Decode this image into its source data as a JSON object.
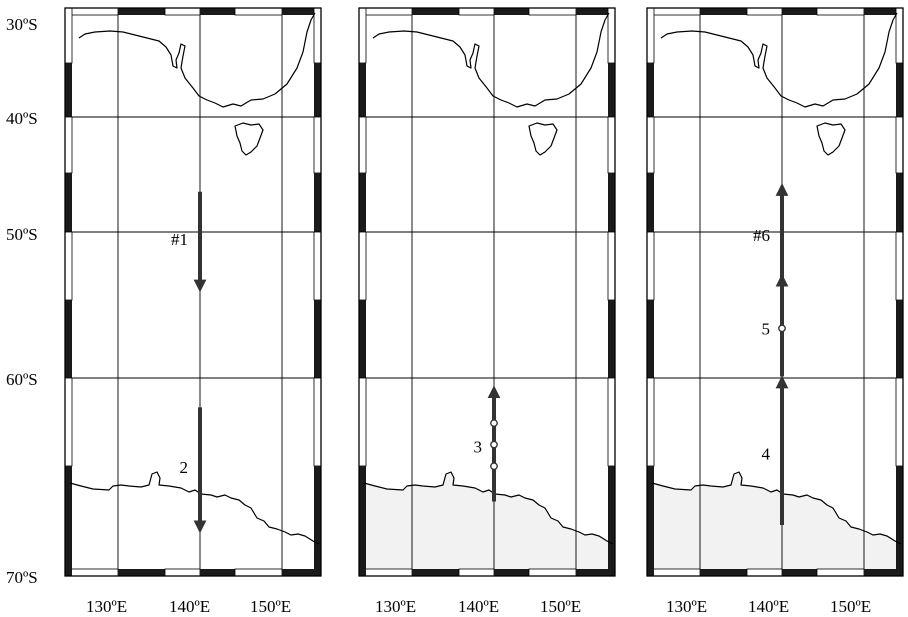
{
  "lat_labels": [
    "30ºS",
    "40ºS",
    "50ºS",
    "60ºS",
    "70ºS"
  ],
  "lon_labels": [
    "130ºE",
    "140ºE",
    "150ºE"
  ],
  "colors": {
    "ink": "#000000",
    "track": "#333333",
    "sea_ice": "#f2f2f2",
    "background": "#ffffff"
  },
  "panels": [
    {
      "name": "left",
      "sea_ice_shaded": false,
      "segments": [
        {
          "label": "#1",
          "from_lat": -46.5,
          "to_lat": -53.7,
          "lon": 140,
          "direction": "southward",
          "stations": []
        },
        {
          "label": "2",
          "from_lat": -61.5,
          "to_lat": -67.6,
          "lon": 140,
          "direction": "southward",
          "stations": []
        }
      ]
    },
    {
      "name": "middle",
      "sea_ice_shaded": true,
      "segments": [
        {
          "label": "3",
          "from_lat": -66.3,
          "to_lat": -60.7,
          "lon": 140,
          "direction": "northward",
          "stations": [
            -62.3,
            -63.4,
            -64.5
          ]
        }
      ]
    },
    {
      "name": "right",
      "sea_ice_shaded": true,
      "segments": [
        {
          "label": "4",
          "from_lat": -67.5,
          "to_lat": -60.2,
          "lon": 140,
          "direction": "northward",
          "stations": []
        },
        {
          "label": "5",
          "from_lat": -59.9,
          "to_lat": -53.3,
          "lon": 140,
          "direction": "northward",
          "stations": [
            -56.6
          ]
        },
        {
          "label": "#6",
          "from_lat": -53.3,
          "to_lat": -46.3,
          "lon": 140,
          "direction": "northward",
          "stations": []
        }
      ]
    }
  ]
}
